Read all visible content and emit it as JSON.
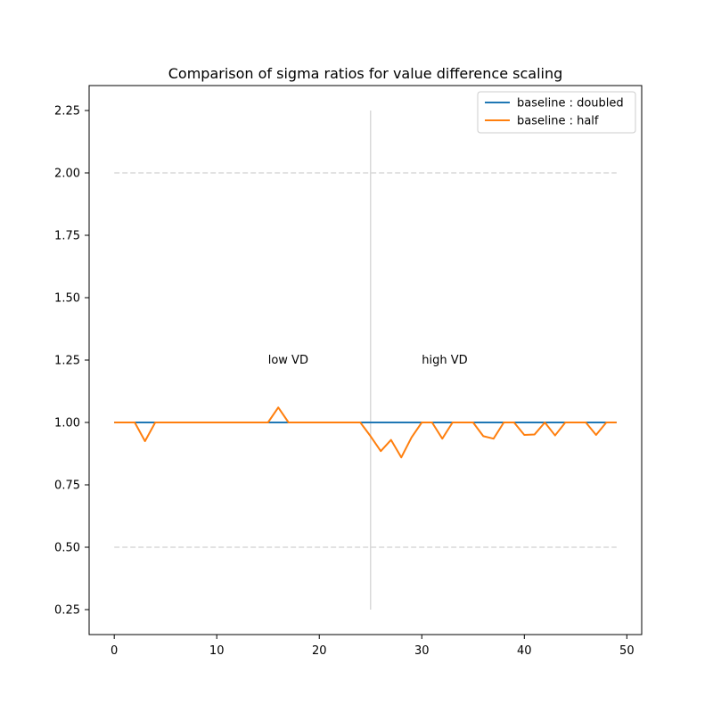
{
  "chart_data": {
    "type": "line",
    "title": "Comparison of sigma ratios for value difference scaling",
    "xlabel": "",
    "ylabel": "",
    "xlim": [
      -2.45,
      51.45
    ],
    "ylim": [
      0.15,
      2.35
    ],
    "x_ticks": [
      0,
      10,
      20,
      30,
      40,
      50
    ],
    "x_tick_labels": [
      "0",
      "10",
      "20",
      "30",
      "40",
      "50"
    ],
    "y_ticks": [
      0.25,
      0.5,
      0.75,
      1.0,
      1.25,
      1.5,
      1.75,
      2.0,
      2.25
    ],
    "y_tick_labels": [
      "0.25",
      "0.50",
      "0.75",
      "1.00",
      "1.25",
      "1.50",
      "1.75",
      "2.00",
      "2.25"
    ],
    "grid": false,
    "legend_position": "top-right",
    "x": [
      0,
      1,
      2,
      3,
      4,
      5,
      6,
      7,
      8,
      9,
      10,
      11,
      12,
      13,
      14,
      15,
      16,
      17,
      18,
      19,
      20,
      21,
      22,
      23,
      24,
      25,
      26,
      27,
      28,
      29,
      30,
      31,
      32,
      33,
      34,
      35,
      36,
      37,
      38,
      39,
      40,
      41,
      42,
      43,
      44,
      45,
      46,
      47,
      48,
      49
    ],
    "series": [
      {
        "name": "baseline : doubled",
        "color": "#1f77b4",
        "values": [
          1,
          1,
          1,
          1,
          1,
          1,
          1,
          1,
          1,
          1,
          1,
          1,
          1,
          1,
          1,
          1,
          1,
          1,
          1,
          1,
          1,
          1,
          1,
          1,
          1,
          1,
          1,
          1,
          1,
          1,
          1,
          1,
          1,
          1,
          1,
          1,
          1,
          1,
          1,
          1,
          1,
          1,
          1,
          1,
          1,
          1,
          1,
          1,
          1,
          1
        ]
      },
      {
        "name": "baseline : half",
        "color": "#ff7f0e",
        "values": [
          1,
          1,
          1,
          0.925,
          1,
          1,
          1,
          1,
          1,
          1,
          1,
          1,
          1,
          1,
          1,
          1,
          1.06,
          1,
          1,
          1,
          1,
          1,
          1,
          1,
          1,
          0.945,
          0.885,
          0.93,
          0.86,
          0.94,
          1,
          1,
          0.935,
          1,
          1,
          1,
          0.945,
          0.935,
          1,
          1,
          0.95,
          0.952,
          1,
          0.948,
          1,
          1,
          1,
          0.95,
          1,
          1
        ]
      }
    ],
    "reference_lines": [
      {
        "kind": "horizontal",
        "y": 2.0,
        "x_range": [
          0,
          49
        ],
        "style": "dashed",
        "color": "#d9d9d9"
      },
      {
        "kind": "horizontal",
        "y": 0.5,
        "x_range": [
          0,
          49
        ],
        "style": "dashed",
        "color": "#d9d9d9"
      },
      {
        "kind": "vertical",
        "x": 25,
        "y_range": [
          0.25,
          2.25
        ],
        "style": "solid",
        "color": "#d9d9d9"
      }
    ],
    "annotations": [
      {
        "text": "low VD",
        "x": 15,
        "y": 1.25
      },
      {
        "text": "high VD",
        "x": 30,
        "y": 1.25
      }
    ]
  }
}
